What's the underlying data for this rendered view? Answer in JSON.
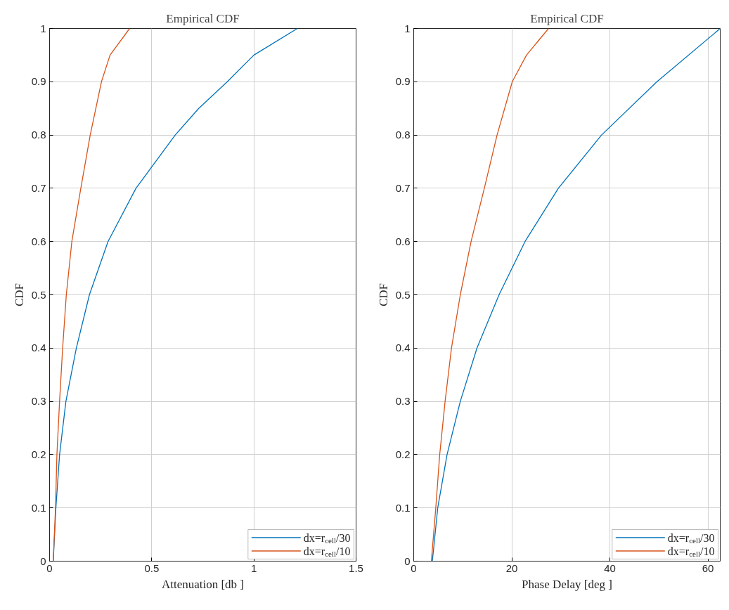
{
  "chart_data": [
    {
      "type": "line",
      "title": "Empirical CDF",
      "xlabel": "Attenuation [db ]",
      "ylabel": "CDF",
      "xlim": [
        0,
        1.5
      ],
      "xticks": [
        0,
        0.5,
        1,
        1.5
      ],
      "ylim": [
        0,
        1
      ],
      "yticks": [
        0,
        0.1,
        0.2,
        0.3,
        0.4,
        0.5,
        0.6,
        0.7,
        0.8,
        0.9,
        1
      ],
      "grid": true,
      "legend": "bottom right",
      "series": [
        {
          "name": "dx=r$_{cell}$/30",
          "color": "#0072bd",
          "x": [
            0.018,
            0.031,
            0.049,
            0.08,
            0.131,
            0.195,
            0.286,
            0.423,
            0.615,
            0.73,
            0.87,
            1.0,
            1.213
          ],
          "values": [
            0,
            0.1,
            0.2,
            0.3,
            0.4,
            0.5,
            0.6,
            0.7,
            0.8,
            0.85,
            0.9,
            0.95,
            1
          ]
        },
        {
          "name": "dx=r$_{cell}$/10",
          "color": "#d95319",
          "x": [
            0.018,
            0.029,
            0.036,
            0.049,
            0.064,
            0.082,
            0.109,
            0.153,
            0.199,
            0.254,
            0.296,
            0.392
          ],
          "values": [
            0,
            0.1,
            0.2,
            0.3,
            0.4,
            0.5,
            0.6,
            0.7,
            0.8,
            0.9,
            0.95,
            1
          ]
        }
      ]
    },
    {
      "type": "line",
      "title": "Empirical CDF",
      "xlabel": "Phase Delay [deg ]",
      "ylabel": "CDF",
      "xlim": [
        0,
        62.5
      ],
      "xticks": [
        0,
        20,
        40,
        60
      ],
      "ylim": [
        0,
        1
      ],
      "yticks": [
        0,
        0.1,
        0.2,
        0.3,
        0.4,
        0.5,
        0.6,
        0.7,
        0.8,
        0.9,
        1
      ],
      "grid": true,
      "legend": "bottom right",
      "series": [
        {
          "name": "dx=r$_{cell}$/30",
          "color": "#0072bd",
          "x": [
            3.8,
            4.9,
            6.8,
            9.5,
            12.9,
            17.4,
            22.7,
            29.5,
            38.3,
            49.6,
            62.5
          ],
          "values": [
            0,
            0.1,
            0.2,
            0.3,
            0.4,
            0.5,
            0.6,
            0.7,
            0.8,
            0.9,
            1
          ]
        },
        {
          "name": "dx=r$_{cell}$/10",
          "color": "#d95319",
          "x": [
            3.6,
            4.5,
            5.3,
            6.4,
            7.7,
            9.5,
            11.7,
            14.4,
            17.0,
            20.1,
            23.0,
            27.5
          ],
          "values": [
            0,
            0.1,
            0.2,
            0.3,
            0.4,
            0.5,
            0.6,
            0.7,
            0.8,
            0.9,
            0.95,
            1
          ]
        }
      ]
    }
  ]
}
